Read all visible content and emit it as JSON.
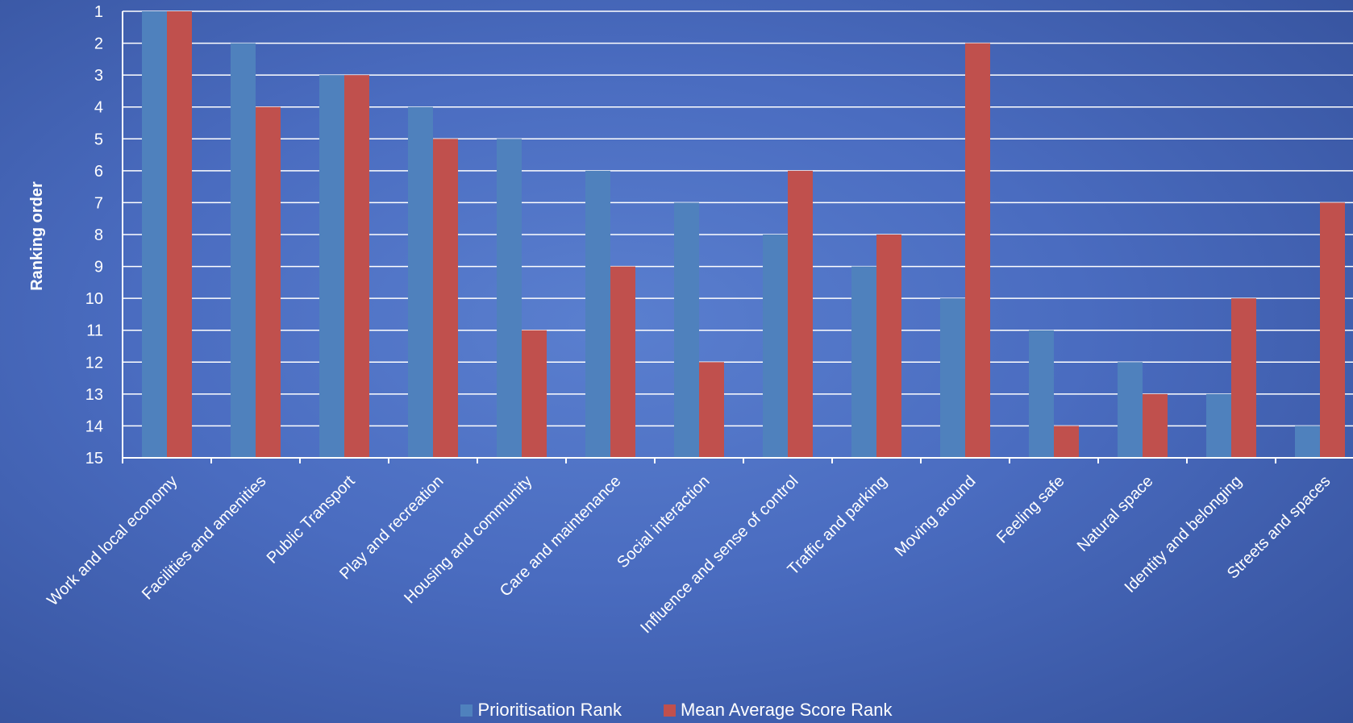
{
  "chart_data": {
    "type": "bar",
    "ylabel": "Ranking order",
    "xlabel": "",
    "ylim": [
      1,
      15
    ],
    "y_inverted": true,
    "grid": true,
    "legend_position": "bottom",
    "categories": [
      "Work and local economy",
      "Facilities and amenities",
      "Public Transport",
      "Play and recreation",
      "Housing and community",
      "Care and maintenance",
      "Social interaction",
      "Influence and sense of control",
      "Traffic and parking",
      "Moving around",
      "Feeling safe",
      "Natural space",
      "Identity and belonging",
      "Streets and spaces"
    ],
    "series": [
      {
        "name": "Prioritisation Rank",
        "color": "#4f81bd",
        "values": [
          1,
          2,
          3,
          4,
          5,
          6,
          7,
          8,
          9,
          10,
          11,
          12,
          13,
          14
        ]
      },
      {
        "name": "Mean Average Score Rank",
        "color": "#c0504d",
        "values": [
          1,
          4,
          3,
          5,
          11,
          9,
          12,
          6,
          8,
          2,
          14,
          13,
          10,
          7
        ]
      }
    ]
  }
}
